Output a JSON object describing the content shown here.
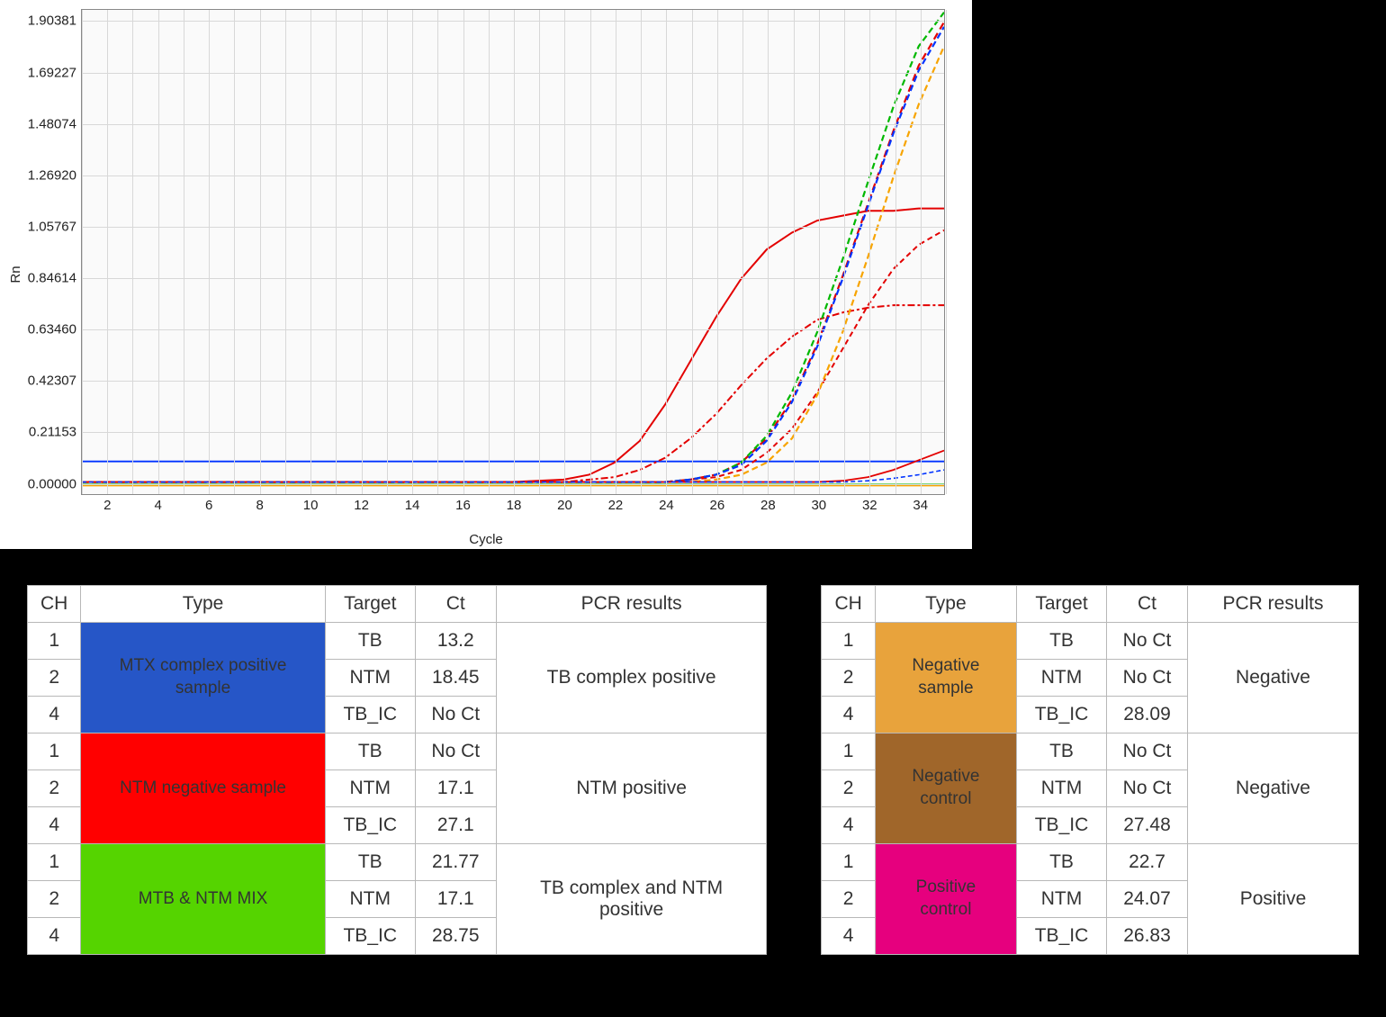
{
  "chart": {
    "type": "line",
    "ylabel": "Rn",
    "xlabel": "Cycle",
    "background_color": "#fafafa",
    "grid_color": "#d8d8d8",
    "xlim": [
      1,
      35
    ],
    "ylim": [
      -0.05,
      1.95
    ],
    "yticks": [
      {
        "v": 0.0,
        "label": "0.00000"
      },
      {
        "v": 0.21153,
        "label": "0.21153"
      },
      {
        "v": 0.42307,
        "label": "0.42307"
      },
      {
        "v": 0.6346,
        "label": "0.63460"
      },
      {
        "v": 0.84614,
        "label": "0.84614"
      },
      {
        "v": 1.05767,
        "label": "1.05767"
      },
      {
        "v": 1.2692,
        "label": "1.26920"
      },
      {
        "v": 1.48074,
        "label": "1.48074"
      },
      {
        "v": 1.69227,
        "label": "1.69227"
      },
      {
        "v": 1.90381,
        "label": "1.90381"
      }
    ],
    "xticks": [
      2,
      4,
      6,
      8,
      10,
      12,
      14,
      16,
      18,
      20,
      22,
      24,
      26,
      28,
      30,
      32,
      34
    ],
    "threshold": {
      "color": "#0033ff",
      "value": 0.085,
      "width": 2.0
    },
    "series": [
      {
        "name": "red-solid-high",
        "color": "#e30000",
        "dash": "none",
        "width": 2.0,
        "pts": [
          [
            1,
            0
          ],
          [
            18,
            0
          ],
          [
            20,
            0.01
          ],
          [
            21,
            0.03
          ],
          [
            22,
            0.08
          ],
          [
            23,
            0.17
          ],
          [
            24,
            0.32
          ],
          [
            25,
            0.5
          ],
          [
            26,
            0.68
          ],
          [
            27,
            0.84
          ],
          [
            28,
            0.96
          ],
          [
            29,
            1.03
          ],
          [
            30,
            1.08
          ],
          [
            31,
            1.1
          ],
          [
            32,
            1.12
          ],
          [
            33,
            1.12
          ],
          [
            34,
            1.13
          ],
          [
            35,
            1.13
          ]
        ]
      },
      {
        "name": "red-dashdot",
        "color": "#e30000",
        "dash": "8 3 3 3",
        "width": 2.0,
        "pts": [
          [
            1,
            0
          ],
          [
            20,
            0
          ],
          [
            22,
            0.02
          ],
          [
            23,
            0.05
          ],
          [
            24,
            0.1
          ],
          [
            25,
            0.18
          ],
          [
            26,
            0.28
          ],
          [
            27,
            0.4
          ],
          [
            28,
            0.51
          ],
          [
            29,
            0.6
          ],
          [
            30,
            0.67
          ],
          [
            31,
            0.7
          ],
          [
            32,
            0.72
          ],
          [
            33,
            0.73
          ],
          [
            34,
            0.73
          ],
          [
            35,
            0.73
          ]
        ]
      },
      {
        "name": "red-dash-tall",
        "color": "#e30000",
        "dash": "8 5",
        "width": 2.2,
        "pts": [
          [
            1,
            0
          ],
          [
            24,
            0
          ],
          [
            25,
            0.01
          ],
          [
            26,
            0.03
          ],
          [
            27,
            0.08
          ],
          [
            28,
            0.18
          ],
          [
            29,
            0.34
          ],
          [
            30,
            0.57
          ],
          [
            31,
            0.85
          ],
          [
            32,
            1.15
          ],
          [
            33,
            1.45
          ],
          [
            34,
            1.72
          ],
          [
            35,
            1.9
          ]
        ]
      },
      {
        "name": "red-dash-mid",
        "color": "#e30000",
        "dash": "6 4",
        "width": 2.0,
        "pts": [
          [
            1,
            0
          ],
          [
            24,
            0
          ],
          [
            26,
            0.02
          ],
          [
            27,
            0.05
          ],
          [
            28,
            0.12
          ],
          [
            29,
            0.22
          ],
          [
            30,
            0.37
          ],
          [
            31,
            0.55
          ],
          [
            32,
            0.73
          ],
          [
            33,
            0.88
          ],
          [
            34,
            0.98
          ],
          [
            35,
            1.04
          ]
        ]
      },
      {
        "name": "green-dash",
        "color": "#00b800",
        "dash": "7 4",
        "width": 2.2,
        "pts": [
          [
            1,
            0
          ],
          [
            24,
            0
          ],
          [
            25,
            0.01
          ],
          [
            26,
            0.03
          ],
          [
            27,
            0.08
          ],
          [
            28,
            0.19
          ],
          [
            29,
            0.37
          ],
          [
            30,
            0.62
          ],
          [
            31,
            0.92
          ],
          [
            32,
            1.24
          ],
          [
            33,
            1.55
          ],
          [
            34,
            1.8
          ],
          [
            35,
            1.94
          ]
        ]
      },
      {
        "name": "blue-dash",
        "color": "#0033ff",
        "dash": "7 4",
        "width": 2.2,
        "pts": [
          [
            1,
            0
          ],
          [
            24,
            0
          ],
          [
            25,
            0.01
          ],
          [
            26,
            0.03
          ],
          [
            27,
            0.07
          ],
          [
            28,
            0.17
          ],
          [
            29,
            0.33
          ],
          [
            30,
            0.56
          ],
          [
            31,
            0.84
          ],
          [
            32,
            1.14
          ],
          [
            33,
            1.44
          ],
          [
            34,
            1.7
          ],
          [
            35,
            1.88
          ]
        ]
      },
      {
        "name": "orange-dash",
        "color": "#f7a400",
        "dash": "7 4",
        "width": 2.2,
        "pts": [
          [
            1,
            0
          ],
          [
            25,
            0
          ],
          [
            26,
            0.01
          ],
          [
            27,
            0.03
          ],
          [
            28,
            0.08
          ],
          [
            29,
            0.18
          ],
          [
            30,
            0.36
          ],
          [
            31,
            0.62
          ],
          [
            32,
            0.93
          ],
          [
            33,
            1.26
          ],
          [
            34,
            1.56
          ],
          [
            35,
            1.8
          ]
        ]
      },
      {
        "name": "red-low-late",
        "color": "#e30000",
        "dash": "none",
        "width": 1.8,
        "pts": [
          [
            1,
            0
          ],
          [
            30,
            0
          ],
          [
            31,
            0.005
          ],
          [
            32,
            0.02
          ],
          [
            33,
            0.05
          ],
          [
            34,
            0.09
          ],
          [
            35,
            0.13
          ]
        ]
      },
      {
        "name": "blue-low-late",
        "color": "#0033ff",
        "dash": "5 3",
        "width": 1.6,
        "pts": [
          [
            1,
            0
          ],
          [
            31,
            0
          ],
          [
            32,
            0.005
          ],
          [
            33,
            0.015
          ],
          [
            34,
            0.03
          ],
          [
            35,
            0.05
          ]
        ]
      },
      {
        "name": "baseline-green",
        "color": "#00b800",
        "dash": "none",
        "width": 1.5,
        "pts": [
          [
            1,
            -0.01
          ],
          [
            35,
            -0.01
          ]
        ]
      },
      {
        "name": "baseline-orange",
        "color": "#f7a400",
        "dash": "none",
        "width": 1.5,
        "pts": [
          [
            1,
            -0.015
          ],
          [
            35,
            -0.015
          ]
        ]
      }
    ]
  },
  "tables": {
    "headers": [
      "CH",
      "Type",
      "Target",
      "Ct",
      "PCR results"
    ],
    "left": [
      {
        "type_label": "MTX complex positive sample",
        "type_bg": "#2656c7",
        "result": "TB complex positive",
        "rows": [
          {
            "ch": "1",
            "target": "TB",
            "ct": "13.2"
          },
          {
            "ch": "2",
            "target": "NTM",
            "ct": "18.45"
          },
          {
            "ch": "4",
            "target": "TB_IC",
            "ct": "No Ct"
          }
        ]
      },
      {
        "type_label": "NTM negative sample",
        "type_bg": "#ff0000",
        "result": "NTM positive",
        "rows": [
          {
            "ch": "1",
            "target": "TB",
            "ct": "No Ct"
          },
          {
            "ch": "2",
            "target": "NTM",
            "ct": "17.1"
          },
          {
            "ch": "4",
            "target": "TB_IC",
            "ct": "27.1"
          }
        ]
      },
      {
        "type_label": "MTB & NTM MIX",
        "type_bg": "#55d400",
        "result": "TB complex and NTM positive",
        "rows": [
          {
            "ch": "1",
            "target": "TB",
            "ct": "21.77"
          },
          {
            "ch": "2",
            "target": "NTM",
            "ct": "17.1"
          },
          {
            "ch": "4",
            "target": "TB_IC",
            "ct": "28.75"
          }
        ]
      }
    ],
    "right": [
      {
        "type_label": "Negative sample",
        "type_bg": "#e8a33c",
        "result": "Negative",
        "rows": [
          {
            "ch": "1",
            "target": "TB",
            "ct": "No Ct"
          },
          {
            "ch": "2",
            "target": "NTM",
            "ct": "No Ct"
          },
          {
            "ch": "4",
            "target": "TB_IC",
            "ct": "28.09"
          }
        ]
      },
      {
        "type_label": "Negative control",
        "type_bg": "#a0662a",
        "result": "Negative",
        "rows": [
          {
            "ch": "1",
            "target": "TB",
            "ct": "No Ct"
          },
          {
            "ch": "2",
            "target": "NTM",
            "ct": "No Ct"
          },
          {
            "ch": "4",
            "target": "TB_IC",
            "ct": "27.48"
          }
        ]
      },
      {
        "type_label": "Positive control",
        "type_bg": "#e6007e",
        "result": "Positive",
        "rows": [
          {
            "ch": "1",
            "target": "TB",
            "ct": "22.7"
          },
          {
            "ch": "2",
            "target": "NTM",
            "ct": "24.07"
          },
          {
            "ch": "4",
            "target": "TB_IC",
            "ct": "26.83"
          }
        ]
      }
    ]
  }
}
